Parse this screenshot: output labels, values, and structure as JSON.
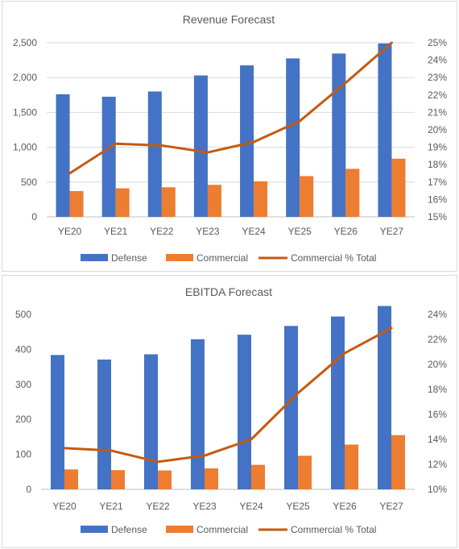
{
  "chart_data": [
    {
      "type": "bar",
      "title": "Revenue Forecast",
      "categories": [
        "YE20",
        "YE21",
        "YE22",
        "YE23",
        "YE24",
        "YE25",
        "YE26",
        "YE27"
      ],
      "series": [
        {
          "name": "Defense",
          "kind": "bar",
          "axis": "left",
          "color": "#4472C4",
          "values": [
            1760,
            1725,
            1800,
            2030,
            2175,
            2275,
            2345,
            2490
          ]
        },
        {
          "name": "Commercial",
          "kind": "bar",
          "axis": "left",
          "color": "#ED7D31",
          "values": [
            370,
            410,
            425,
            460,
            510,
            585,
            690,
            835
          ]
        },
        {
          "name": "Commercial % Total",
          "kind": "line",
          "axis": "right",
          "color": "#C55A11",
          "values": [
            17.5,
            19.2,
            19.1,
            18.7,
            19.3,
            20.5,
            22.7,
            25.0
          ]
        }
      ],
      "ylim": [
        0,
        2500
      ],
      "yticks": [
        "0",
        "500",
        "1,000",
        "1,500",
        "2,000",
        "2,500"
      ],
      "y2lim": [
        15,
        25
      ],
      "y2ticks": [
        "15%",
        "16%",
        "17%",
        "18%",
        "19%",
        "20%",
        "21%",
        "22%",
        "23%",
        "24%",
        "25%"
      ],
      "grid": true,
      "legend": "bottom"
    },
    {
      "type": "bar",
      "title": "EBITDA Forecast",
      "categories": [
        "YE20",
        "YE21",
        "YE22",
        "YE23",
        "YE24",
        "YE25",
        "YE26",
        "YE27"
      ],
      "series": [
        {
          "name": "Defense",
          "kind": "bar",
          "axis": "left",
          "color": "#4472C4",
          "values": [
            384,
            371,
            386,
            429,
            442,
            467,
            494,
            524
          ]
        },
        {
          "name": "Commercial",
          "kind": "bar",
          "axis": "left",
          "color": "#ED7D31",
          "values": [
            57,
            55,
            54,
            60,
            70,
            96,
            128,
            155
          ]
        },
        {
          "name": "Commercial % Total",
          "kind": "line",
          "axis": "right",
          "color": "#C55A11",
          "values": [
            13.3,
            13.1,
            12.2,
            12.7,
            14.0,
            17.7,
            20.9,
            22.9
          ]
        }
      ],
      "ylim": [
        0,
        500
      ],
      "yticks": [
        "0",
        "100",
        "200",
        "300",
        "400",
        "500"
      ],
      "y2lim": [
        10,
        24
      ],
      "y2ticks": [
        "10%",
        "12%",
        "14%",
        "16%",
        "18%",
        "20%",
        "22%",
        "24%"
      ],
      "grid": false,
      "legend": "bottom"
    }
  ]
}
